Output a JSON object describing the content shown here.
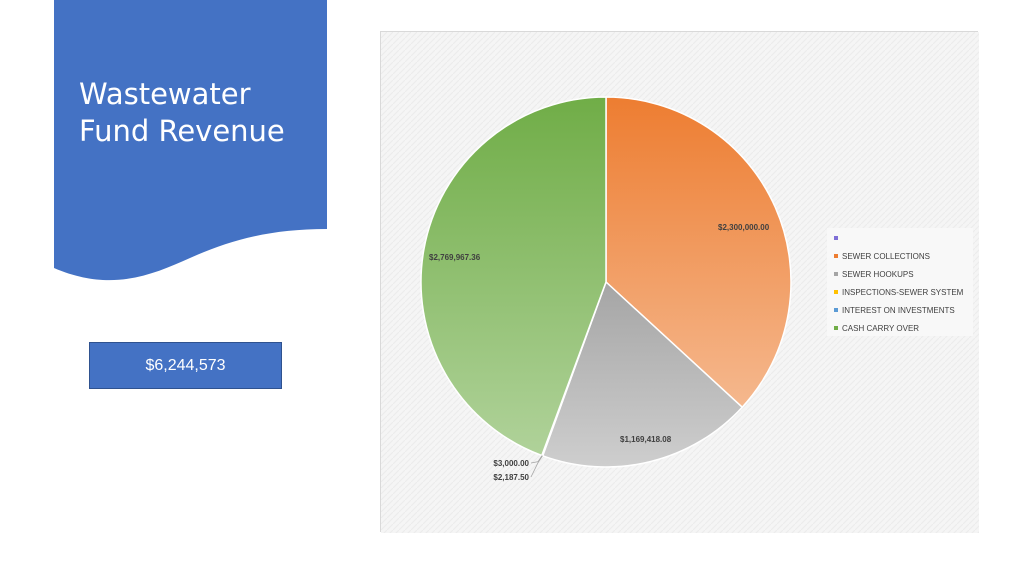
{
  "slide": {
    "title_line1": "Wastewater",
    "title_line2": "Fund Revenue",
    "total": "$6,244,573",
    "panel_color": "#4472c4"
  },
  "chart_data": {
    "type": "pie",
    "title": "",
    "slices": [
      {
        "name": "",
        "value": 0,
        "label": "",
        "color": "#7f6fd6"
      },
      {
        "name": "SEWER COLLECTIONS",
        "value": 2300000.0,
        "label": "$2,300,000.00",
        "color": "#ed7d31"
      },
      {
        "name": "SEWER HOOKUPS",
        "value": 1169418.08,
        "label": "$1,169,418.08",
        "color": "#a5a5a5"
      },
      {
        "name": "INSPECTIONS-SEWER SYSTEM",
        "value": 2187.5,
        "label": "$2,187.50",
        "color": "#ffc000"
      },
      {
        "name": "INTEREST ON INVESTMENTS",
        "value": 3000.0,
        "label": "$3,000.00",
        "color": "#5b9bd5"
      },
      {
        "name": "CASH CARRY OVER",
        "value": 2769967.36,
        "label": "$2,769,967.36",
        "color": "#70ad47"
      }
    ],
    "legend_position": "right"
  }
}
